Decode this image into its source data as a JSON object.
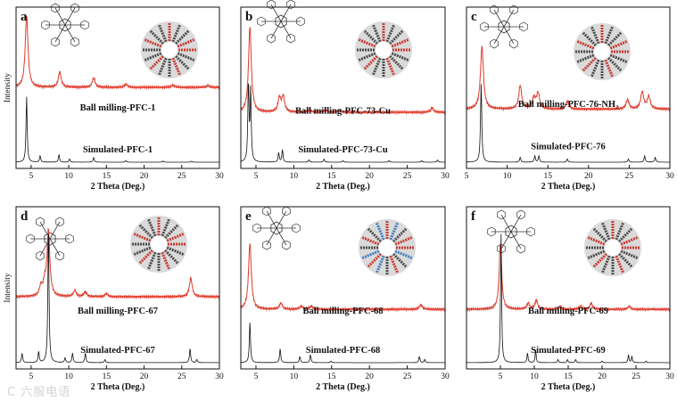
{
  "figure": {
    "watermark": "C 六服电语",
    "colors": {
      "experimental": "#e03a2b",
      "simulated": "#111111",
      "molecule": "#333333",
      "frame_dark": "#4a4a4a",
      "frame_red": "#c83a32",
      "frame_blue": "#3f7fbf"
    }
  },
  "chart_data": [
    {
      "panel": "a",
      "type": "line",
      "xlabel": "2 Theta (Deg.)",
      "ylabel": "Intensity",
      "xlim": [
        3,
        30
      ],
      "xticks": [
        5,
        10,
        15,
        20,
        25,
        30
      ],
      "series": [
        {
          "name": "Ball milling-PFC-1",
          "kind": "experimental",
          "baseline": 0.52,
          "peaks": [
            [
              4.4,
              0.46
            ],
            [
              8.8,
              0.1
            ],
            [
              13.3,
              0.06
            ],
            [
              17.6,
              0.02
            ],
            [
              23.8,
              0.015
            ],
            [
              28.5,
              0.012
            ]
          ]
        },
        {
          "name": "Simulated-PFC-1",
          "kind": "simulated",
          "baseline": 0.04,
          "peaks": [
            [
              4.4,
              0.42
            ],
            [
              6.2,
              0.04
            ],
            [
              8.7,
              0.05
            ],
            [
              10.1,
              0.02
            ],
            [
              13.3,
              0.03
            ],
            [
              17.6,
              0.01
            ],
            [
              22.5,
              0.008
            ],
            [
              26.3,
              0.006
            ]
          ]
        }
      ]
    },
    {
      "panel": "b",
      "type": "line",
      "xlabel": "2 Theta (Deg.)",
      "ylabel": "",
      "xlim": [
        3,
        30
      ],
      "xticks": [
        5,
        10,
        15,
        20,
        25,
        30
      ],
      "series": [
        {
          "name": "Ball milling-PFC-73-Cu",
          "kind": "experimental",
          "baseline": 0.36,
          "peaks": [
            [
              4.2,
              0.55
            ],
            [
              8.1,
              0.09
            ],
            [
              8.6,
              0.1
            ],
            [
              12.1,
              0.015
            ],
            [
              14.2,
              0.015
            ],
            [
              16.0,
              0.015
            ],
            [
              28.3,
              0.03
            ]
          ]
        },
        {
          "name": "Simulated-PFC-73-Cu",
          "kind": "simulated",
          "baseline": 0.04,
          "peaks": [
            [
              4.0,
              0.5
            ],
            [
              4.3,
              0.45
            ],
            [
              8.0,
              0.06
            ],
            [
              8.5,
              0.08
            ],
            [
              12.0,
              0.015
            ],
            [
              14.0,
              0.02
            ],
            [
              16.5,
              0.01
            ],
            [
              22.6,
              0.01
            ],
            [
              26.9,
              0.01
            ],
            [
              29.0,
              0.015
            ]
          ]
        }
      ]
    },
    {
      "panel": "c",
      "type": "line",
      "xlabel": "2 Theta (Deg.)",
      "ylabel": "",
      "xlim": [
        5,
        30
      ],
      "xticks": [
        5,
        10,
        15,
        20,
        25,
        30
      ],
      "series": [
        {
          "name": "Ball milling-PFC-76-NH₂",
          "kind": "experimental",
          "baseline": 0.38,
          "peaks": [
            [
              6.9,
              0.4
            ],
            [
              11.6,
              0.15
            ],
            [
              13.3,
              0.07
            ],
            [
              13.8,
              0.1
            ],
            [
              17.4,
              0.05
            ],
            [
              24.8,
              0.06
            ],
            [
              26.6,
              0.11
            ],
            [
              27.4,
              0.08
            ]
          ]
        },
        {
          "name": "Simulated-PFC-76",
          "kind": "simulated",
          "baseline": 0.04,
          "peaks": [
            [
              6.8,
              0.5
            ],
            [
              11.6,
              0.03
            ],
            [
              13.4,
              0.04
            ],
            [
              13.9,
              0.04
            ],
            [
              17.4,
              0.02
            ],
            [
              24.9,
              0.02
            ],
            [
              26.9,
              0.04
            ],
            [
              28.2,
              0.03
            ]
          ]
        }
      ]
    },
    {
      "panel": "d",
      "type": "line",
      "xlabel": "2 Theta (Deg.)",
      "ylabel": "Intensity",
      "xlim": [
        3,
        30
      ],
      "xticks": [
        5,
        10,
        15,
        20,
        25,
        30
      ],
      "series": [
        {
          "name": "Ball milling-PFC-67",
          "kind": "experimental",
          "baseline": 0.46,
          "peaks": [
            [
              6.3,
              0.06
            ],
            [
              6.8,
              0.08
            ],
            [
              7.3,
              0.42
            ],
            [
              10.8,
              0.04
            ],
            [
              12.2,
              0.03
            ],
            [
              15.0,
              0.02
            ],
            [
              26.2,
              0.12
            ]
          ]
        },
        {
          "name": "Simulated-PFC-67",
          "kind": "simulated",
          "baseline": 0.04,
          "peaks": [
            [
              3.8,
              0.06
            ],
            [
              6.0,
              0.07
            ],
            [
              7.3,
              0.86
            ],
            [
              9.5,
              0.03
            ],
            [
              10.5,
              0.06
            ],
            [
              12.2,
              0.06
            ],
            [
              14.8,
              0.02
            ],
            [
              26.1,
              0.09
            ],
            [
              27.0,
              0.02
            ]
          ]
        }
      ]
    },
    {
      "panel": "e",
      "type": "line",
      "xlabel": "2 Theta (Deg.)",
      "ylabel": "",
      "xlim": [
        3,
        30
      ],
      "xticks": [
        5,
        10,
        15,
        20,
        25,
        30
      ],
      "series": [
        {
          "name": "Ball milling-PFC-68",
          "kind": "experimental",
          "baseline": 0.38,
          "peaks": [
            [
              4.2,
              0.42
            ],
            [
              8.3,
              0.04
            ],
            [
              11.0,
              0.02
            ],
            [
              12.3,
              0.02
            ],
            [
              26.8,
              0.03
            ]
          ]
        },
        {
          "name": "Simulated-PFC-68",
          "kind": "simulated",
          "baseline": 0.04,
          "peaks": [
            [
              4.2,
              0.26
            ],
            [
              8.2,
              0.09
            ],
            [
              10.8,
              0.04
            ],
            [
              12.2,
              0.05
            ],
            [
              14.9,
              0.01
            ],
            [
              26.6,
              0.04
            ],
            [
              27.3,
              0.02
            ]
          ]
        }
      ]
    },
    {
      "panel": "f",
      "type": "line",
      "xlabel": "2 Theta (Deg.)",
      "ylabel": "",
      "xlim": [
        0,
        30
      ],
      "xticks": [
        5,
        10,
        15,
        20,
        25,
        30
      ],
      "series": [
        {
          "name": "Ball milling-PFC-69",
          "kind": "experimental",
          "baseline": 0.38,
          "peaks": [
            [
              5.0,
              0.42
            ],
            [
              9.1,
              0.04
            ],
            [
              10.3,
              0.06
            ],
            [
              13.8,
              0.02
            ],
            [
              16.8,
              0.02
            ],
            [
              18.4,
              0.04
            ],
            [
              24.0,
              0.02
            ]
          ]
        },
        {
          "name": "Simulated-PFC-69",
          "kind": "simulated",
          "baseline": 0.04,
          "peaks": [
            [
              5.1,
              0.82
            ],
            [
              9.0,
              0.06
            ],
            [
              10.2,
              0.08
            ],
            [
              13.5,
              0.02
            ],
            [
              14.9,
              0.02
            ],
            [
              16.1,
              0.02
            ],
            [
              20.0,
              0.01
            ],
            [
              23.9,
              0.05
            ],
            [
              24.4,
              0.04
            ],
            [
              26.5,
              0.01
            ]
          ]
        }
      ]
    }
  ]
}
